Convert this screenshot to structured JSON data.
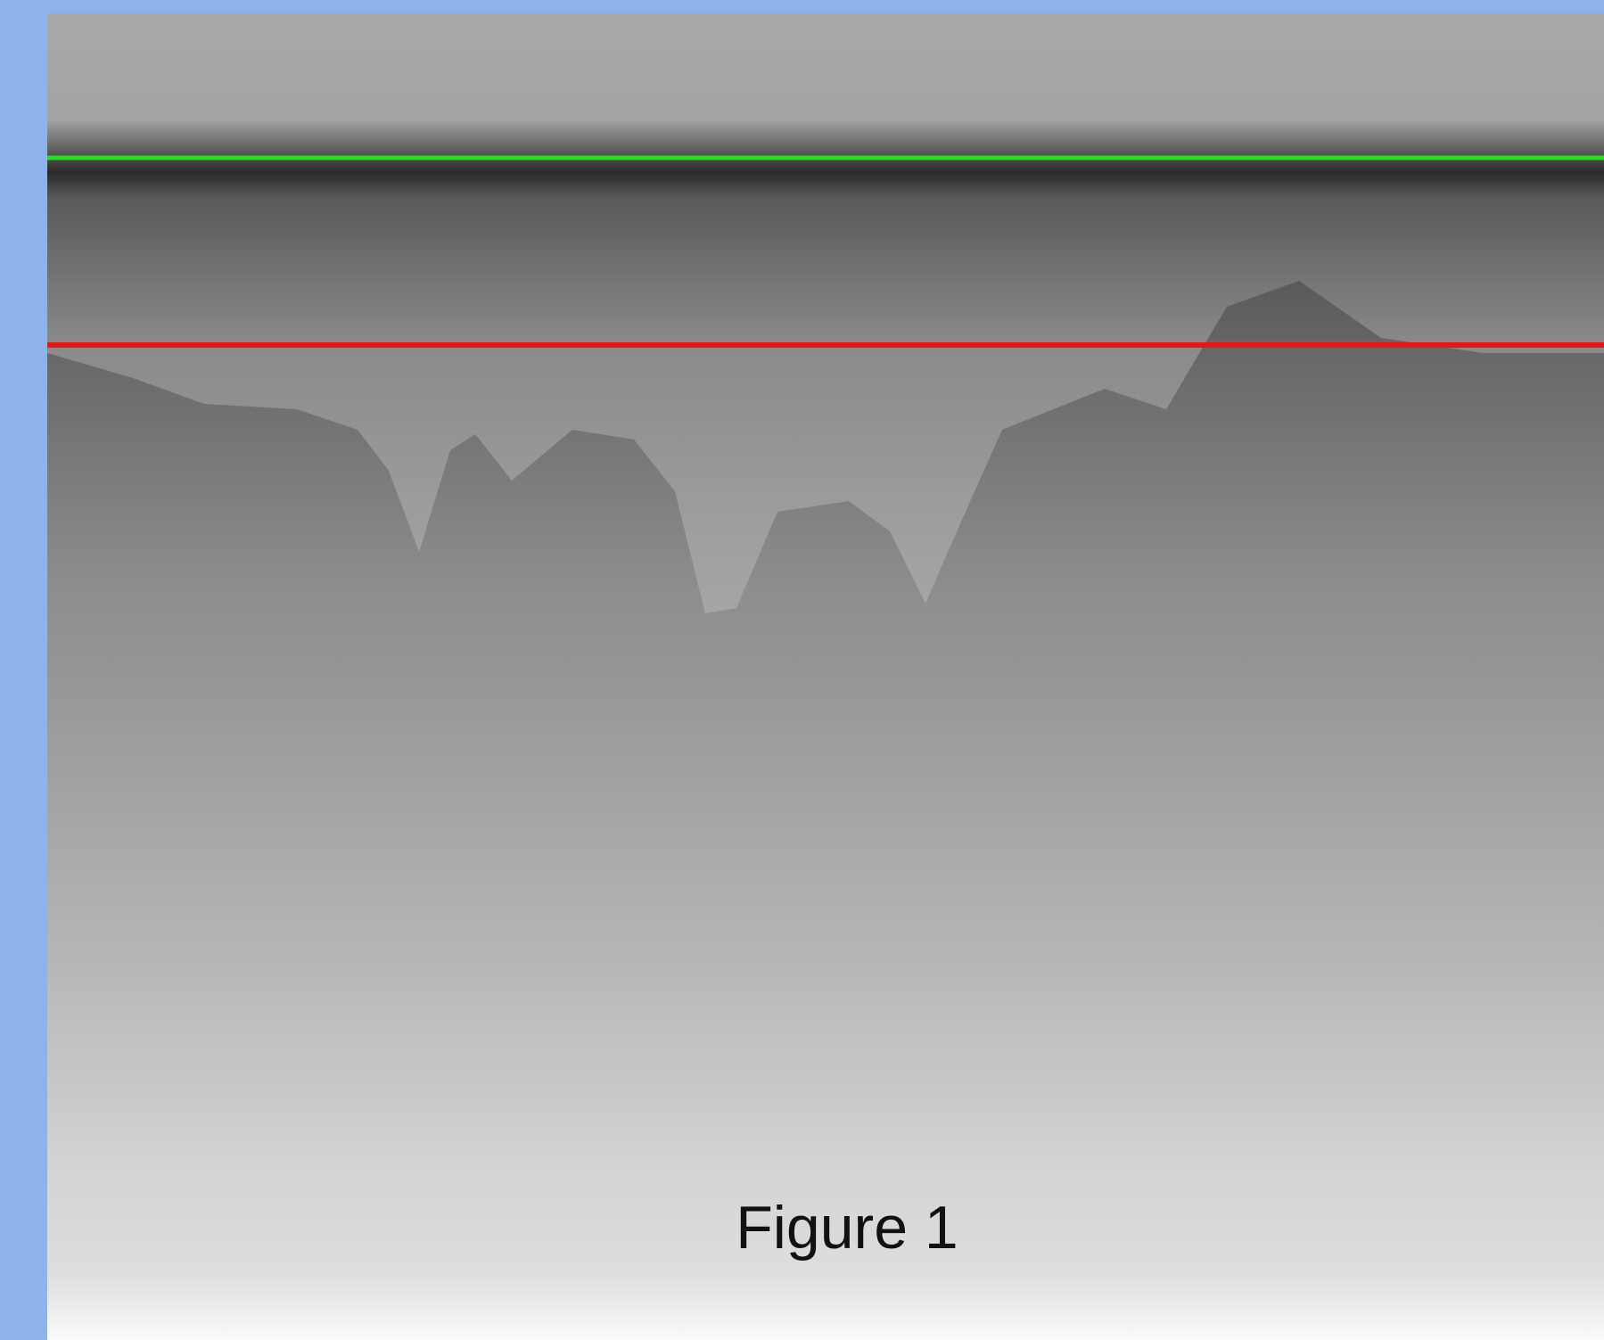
{
  "caption": "Figure 1"
}
